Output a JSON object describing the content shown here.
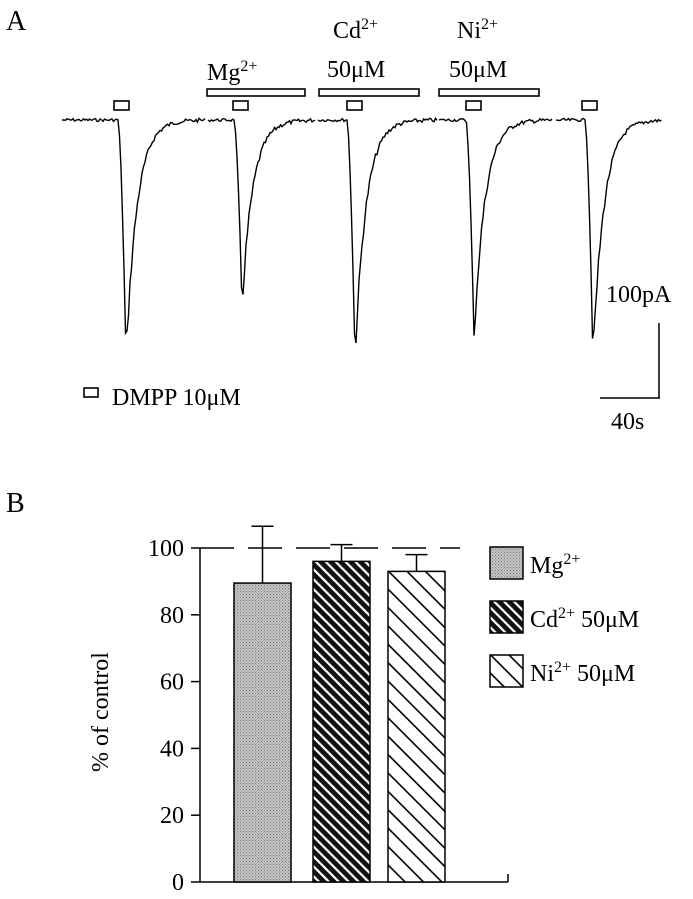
{
  "panel_a": {
    "label": "A",
    "applications": [
      {
        "name": "Mg",
        "sup": "2+",
        "conc": ""
      },
      {
        "name": "Cd",
        "sup": "2+",
        "conc": "50μM"
      },
      {
        "name": "Ni",
        "sup": "2+",
        "conc": "50μM"
      }
    ],
    "agonist_legend": "DMPP 10μM",
    "scale_current": "100pA",
    "scale_time": "40s",
    "trace_peaks_relative": [
      1.0,
      0.78,
      1.0,
      0.92,
      1.0
    ]
  },
  "panel_b": {
    "label": "B",
    "ylabel": "% of control",
    "legend": [
      {
        "name": "Mg",
        "sup": "2+",
        "conc": ""
      },
      {
        "name": "Cd",
        "sup": "2+",
        "conc": "50μM"
      },
      {
        "name": "Ni",
        "sup": "2+",
        "conc": "50μM"
      }
    ]
  },
  "chart_data": {
    "type": "bar",
    "categories": [
      "Mg2+",
      "Cd2+ 50μM",
      "Ni2+ 50μM"
    ],
    "values": [
      89.5,
      96,
      93
    ],
    "errors": [
      17,
      5,
      5
    ],
    "ylabel": "% of control",
    "ylim": [
      0,
      100
    ],
    "yticks": [
      0,
      20,
      40,
      60,
      80,
      100
    ],
    "reference_line": 100,
    "fills": [
      "dotted-gray",
      "dense-diagonal-black",
      "sparse-diagonal-white"
    ],
    "legend_position": "right"
  }
}
